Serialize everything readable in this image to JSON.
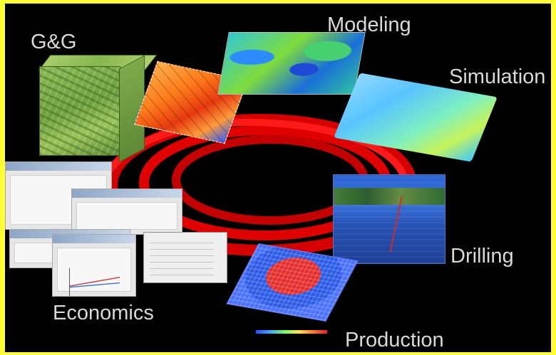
{
  "labels": {
    "gg": "G&G",
    "modeling": "Modeling",
    "simulation": "Simulation",
    "drilling": "Drilling",
    "economics": "Economics",
    "production": "Production"
  },
  "colors": {
    "frame": "#ffff33",
    "background": "#000000",
    "ring": "#d60000",
    "label": "#d9d9d9"
  }
}
